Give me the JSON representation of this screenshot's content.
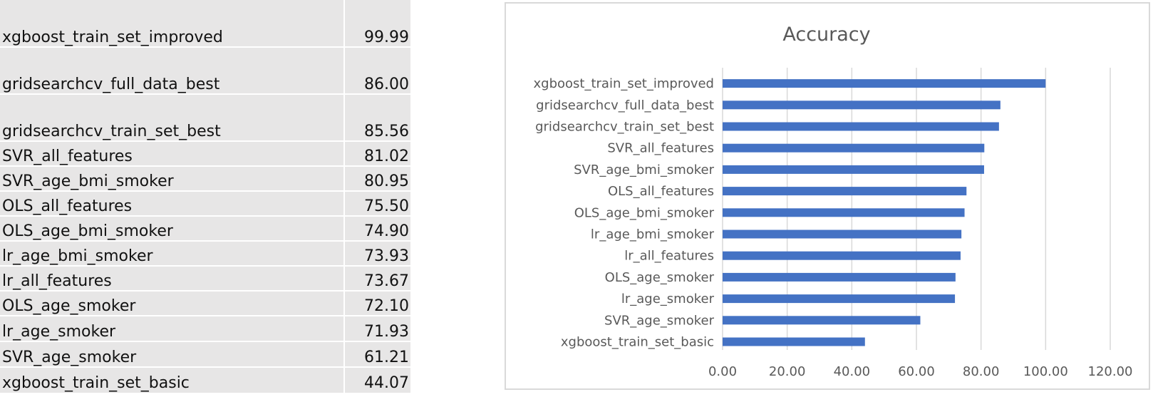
{
  "table": {
    "rows": [
      {
        "label": "xgboost_train_set_improved",
        "value": "99.99"
      },
      {
        "label": "gridsearchcv_full_data_best",
        "value": "86.00"
      },
      {
        "label": "gridsearchcv_train_set_best",
        "value": "85.56"
      },
      {
        "label": "SVR_all_features",
        "value": "81.02"
      },
      {
        "label": "SVR_age_bmi_smoker",
        "value": "80.95"
      },
      {
        "label": "OLS_all_features",
        "value": "75.50"
      },
      {
        "label": "OLS_age_bmi_smoker",
        "value": "74.90"
      },
      {
        "label": "lr_age_bmi_smoker",
        "value": "73.93"
      },
      {
        "label": "lr_all_features",
        "value": "73.67"
      },
      {
        "label": "OLS_age_smoker",
        "value": "72.10"
      },
      {
        "label": "lr_age_smoker",
        "value": "71.93"
      },
      {
        "label": "SVR_age_smoker",
        "value": "61.21"
      },
      {
        "label": "xgboost_train_set_basic",
        "value": "44.07"
      }
    ]
  },
  "chart_data": {
    "type": "bar",
    "orientation": "horizontal",
    "title": "Accuracy",
    "categories": [
      "xgboost_train_set_improved",
      "gridsearchcv_full_data_best",
      "gridsearchcv_train_set_best",
      "SVR_all_features",
      "SVR_age_bmi_smoker",
      "OLS_all_features",
      "OLS_age_bmi_smoker",
      "lr_age_bmi_smoker",
      "lr_all_features",
      "OLS_age_smoker",
      "lr_age_smoker",
      "SVR_age_smoker",
      "xgboost_train_set_basic"
    ],
    "values": [
      99.99,
      86.0,
      85.56,
      81.02,
      80.95,
      75.5,
      74.9,
      73.93,
      73.67,
      72.1,
      71.93,
      61.21,
      44.07
    ],
    "xlim": [
      0,
      120
    ],
    "xticks": [
      "0.00",
      "20.00",
      "40.00",
      "60.00",
      "80.00",
      "100.00",
      "120.00"
    ],
    "grid": true,
    "legend": "none",
    "bar_color": "#4472c4"
  }
}
